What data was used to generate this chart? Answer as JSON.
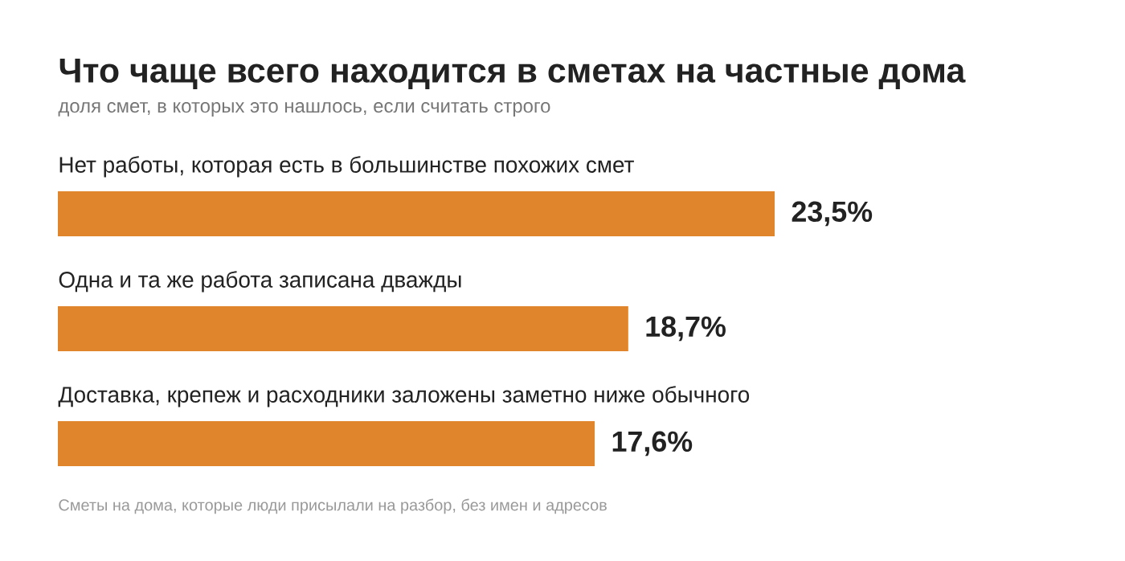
{
  "chart_data": {
    "type": "bar",
    "orientation": "horizontal",
    "title": "Что чаще всего находится в сметах на частные дома",
    "subtitle": "доля смет, в которых это нашлось, если считать строго",
    "categories": [
      "Нет работы, которая есть в большинстве похожих смет",
      "Одна и та же работа записана дважды",
      "Доставка, крепеж и расходники заложены заметно ниже обычного"
    ],
    "values": [
      23.5,
      18.7,
      17.6
    ],
    "value_labels": [
      "23,5%",
      "18,7%",
      "17,6%"
    ],
    "color": "#e0852c",
    "annotations": [
      "Сметы на дома, которые люди присылали на разбор, без имен и адресов"
    ]
  }
}
